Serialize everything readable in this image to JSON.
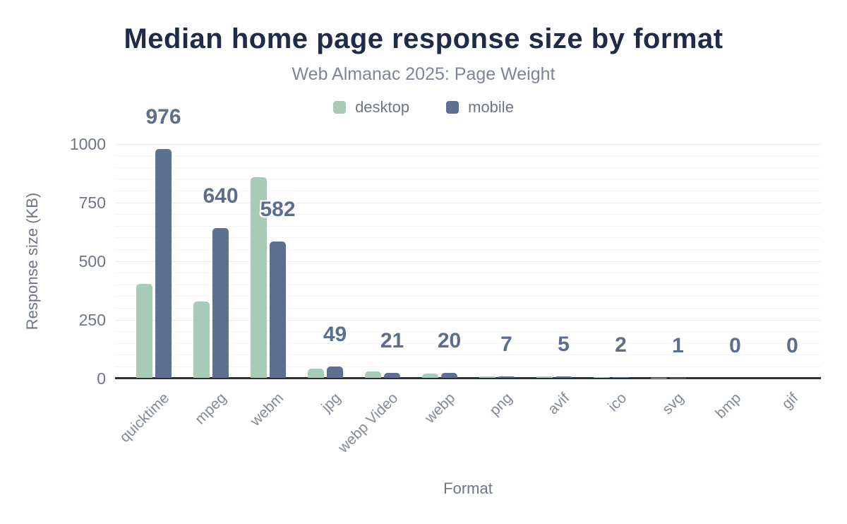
{
  "chart_data": {
    "type": "bar",
    "title": "Median home page response size by format",
    "subtitle": "Web Almanac 2025: Page Weight",
    "xlabel": "Format",
    "ylabel": "Response size (KB)",
    "categories": [
      "quicktime",
      "mpeg",
      "webm",
      "jpg",
      "webp Video",
      "webp",
      "png",
      "avif",
      "ico",
      "svg",
      "bmp",
      "gif"
    ],
    "series": [
      {
        "name": "desktop",
        "color": "#a8cbb8",
        "values": [
          400,
          325,
          855,
          40,
          28,
          17,
          7,
          5,
          2,
          1,
          0,
          0
        ]
      },
      {
        "name": "mobile",
        "color": "#5e708f",
        "values": [
          976,
          640,
          582,
          49,
          21,
          20,
          7,
          5,
          2,
          1,
          0,
          0
        ]
      }
    ],
    "data_labels": {
      "source_series": "mobile",
      "values": [
        "976",
        "640",
        "582",
        "49",
        "21",
        "20",
        "7",
        "5",
        "2",
        "1",
        "0",
        "0"
      ]
    },
    "ylim": [
      0,
      1000
    ],
    "yticks": [
      0,
      250,
      500,
      750,
      1000
    ],
    "minor_grid_interval_kb": 50,
    "grid": "horizontal",
    "legend_position": "top"
  },
  "colors": {
    "title": "#1f2c47",
    "subtitle": "#7d8695",
    "axis_text": "#6e7684",
    "category_text": "#828a97",
    "data_label": "#5c6e8e",
    "axis_line": "#2d3136",
    "grid_major": "#e8eaed",
    "grid_minor": "#f4f5f6",
    "desktop_bar": "#a8cbb8",
    "mobile_bar": "#5e708f",
    "background": "#ffffff"
  }
}
